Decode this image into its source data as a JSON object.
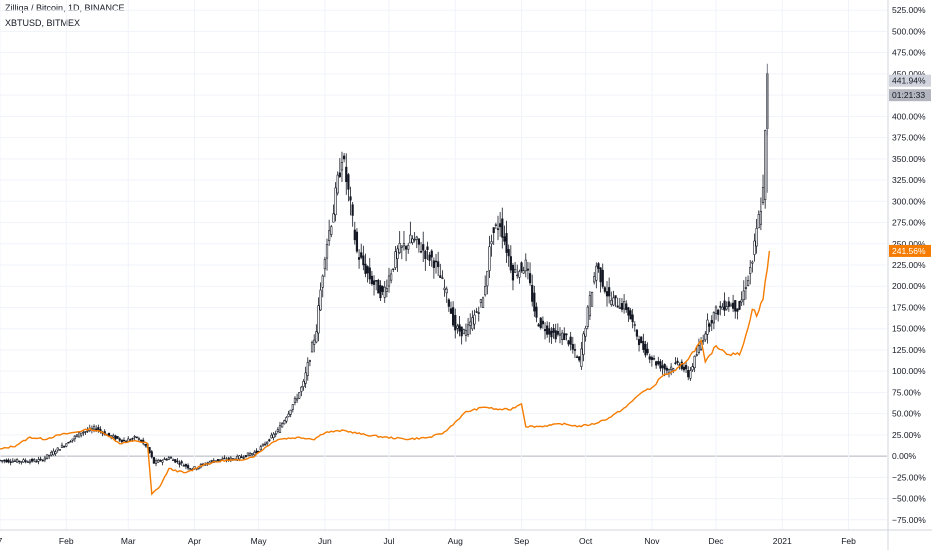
{
  "legend": {
    "main": "Zilliqa / Bitcoin, 1D, BINANCE",
    "compare": "XBTUSD, BITMEX"
  },
  "badges": {
    "main_value": "441.94%",
    "timer": "01:21:33",
    "compare_value": "241.56%"
  },
  "colors": {
    "background": "#ffffff",
    "grid": "#f0f3fa",
    "candle": "#131722",
    "compare_line": "#f57c00",
    "badge_main": "#d1d4dc",
    "badge_timer": "#b2b5be",
    "badge_compare": "#f57c00",
    "axis_text": "#131722",
    "zero_line": "#b2b5be"
  },
  "chart_data": {
    "type": "line",
    "ylim": [
      -87,
      537
    ],
    "yticks": [
      {
        "value": 525,
        "label": "525.00%"
      },
      {
        "value": 500,
        "label": "500.00%"
      },
      {
        "value": 475,
        "label": "475.00%"
      },
      {
        "value": 450,
        "label": "450.00%"
      },
      {
        "value": 425,
        "label": "425.00%"
      },
      {
        "value": 400,
        "label": "400.00%"
      },
      {
        "value": 375,
        "label": "375.00%"
      },
      {
        "value": 350,
        "label": "350.00%"
      },
      {
        "value": 325,
        "label": "325.00%"
      },
      {
        "value": 300,
        "label": "300.00%"
      },
      {
        "value": 275,
        "label": "275.00%"
      },
      {
        "value": 250,
        "label": "250.00%"
      },
      {
        "value": 225,
        "label": "225.00%"
      },
      {
        "value": 200,
        "label": "200.00%"
      },
      {
        "value": 175,
        "label": "175.00%"
      },
      {
        "value": 150,
        "label": "150.00%"
      },
      {
        "value": 125,
        "label": "125.00%"
      },
      {
        "value": 100,
        "label": "100.00%"
      },
      {
        "value": 75,
        "label": "75.00%"
      },
      {
        "value": 50,
        "label": "50.00%"
      },
      {
        "value": 25,
        "label": "25.00%"
      },
      {
        "value": 0,
        "label": "0.00%"
      },
      {
        "value": -25,
        "label": "−25.00%"
      },
      {
        "value": -50,
        "label": "−50.00%"
      },
      {
        "value": -75,
        "label": "−75.00%"
      }
    ],
    "xticks": [
      {
        "date": "2020-01-01",
        "label": "7"
      },
      {
        "date": "2020-02-01",
        "label": "Feb"
      },
      {
        "date": "2020-03-01",
        "label": "Mar"
      },
      {
        "date": "2020-04-01",
        "label": "Apr"
      },
      {
        "date": "2020-05-01",
        "label": "May"
      },
      {
        "date": "2020-06-01",
        "label": "Jun"
      },
      {
        "date": "2020-07-01",
        "label": "Jul"
      },
      {
        "date": "2020-08-01",
        "label": "Aug"
      },
      {
        "date": "2020-09-01",
        "label": "Sep"
      },
      {
        "date": "2020-10-01",
        "label": "Oct"
      },
      {
        "date": "2020-11-01",
        "label": "Nov"
      },
      {
        "date": "2020-12-01",
        "label": "Dec"
      },
      {
        "date": "2021-01-01",
        "label": "2021"
      },
      {
        "date": "2021-02-01",
        "label": "Feb"
      }
    ],
    "xlim": [
      "2020-01-01",
      "2021-02-19"
    ],
    "series": [
      {
        "name": "Zilliqa / Bitcoin, 1D, BINANCE",
        "style": "candles",
        "points": [
          [
            "2020-01-01",
            -5
          ],
          [
            "2020-01-10",
            -6
          ],
          [
            "2020-01-20",
            -5
          ],
          [
            "2020-01-25",
            3
          ],
          [
            "2020-02-01",
            15
          ],
          [
            "2020-02-08",
            28
          ],
          [
            "2020-02-15",
            33
          ],
          [
            "2020-02-20",
            25
          ],
          [
            "2020-02-28",
            18
          ],
          [
            "2020-03-05",
            22
          ],
          [
            "2020-03-10",
            10
          ],
          [
            "2020-03-13",
            -8
          ],
          [
            "2020-03-20",
            -2
          ],
          [
            "2020-03-31",
            -15
          ],
          [
            "2020-04-10",
            -5
          ],
          [
            "2020-04-20",
            -3
          ],
          [
            "2020-04-30",
            5
          ],
          [
            "2020-05-10",
            30
          ],
          [
            "2020-05-18",
            65
          ],
          [
            "2020-05-22",
            85
          ],
          [
            "2020-05-28",
            150
          ],
          [
            "2020-06-01",
            240
          ],
          [
            "2020-06-05",
            290
          ],
          [
            "2020-06-09",
            355
          ],
          [
            "2020-06-12",
            310
          ],
          [
            "2020-06-16",
            240
          ],
          [
            "2020-06-22",
            210
          ],
          [
            "2020-06-28",
            190
          ],
          [
            "2020-07-05",
            240
          ],
          [
            "2020-07-12",
            255
          ],
          [
            "2020-07-22",
            230
          ],
          [
            "2020-07-28",
            190
          ],
          [
            "2020-08-01",
            150
          ],
          [
            "2020-08-06",
            145
          ],
          [
            "2020-08-14",
            185
          ],
          [
            "2020-08-18",
            260
          ],
          [
            "2020-08-22",
            275
          ],
          [
            "2020-08-28",
            215
          ],
          [
            "2020-09-03",
            225
          ],
          [
            "2020-09-08",
            160
          ],
          [
            "2020-09-15",
            145
          ],
          [
            "2020-09-22",
            140
          ],
          [
            "2020-09-28",
            110
          ],
          [
            "2020-10-02",
            170
          ],
          [
            "2020-10-06",
            225
          ],
          [
            "2020-10-12",
            185
          ],
          [
            "2020-10-20",
            175
          ],
          [
            "2020-10-27",
            130
          ],
          [
            "2020-11-03",
            110
          ],
          [
            "2020-11-08",
            102
          ],
          [
            "2020-11-14",
            110
          ],
          [
            "2020-11-18",
            95
          ],
          [
            "2020-11-22",
            120
          ],
          [
            "2020-11-27",
            155
          ],
          [
            "2020-12-01",
            170
          ],
          [
            "2020-12-06",
            180
          ],
          [
            "2020-12-12",
            175
          ],
          [
            "2020-12-18",
            230
          ],
          [
            "2020-12-21",
            280
          ],
          [
            "2020-12-23",
            310
          ],
          [
            "2020-12-25",
            442
          ]
        ]
      },
      {
        "name": "XBTUSD, BITMEX",
        "style": "line",
        "points": [
          [
            "2020-01-01",
            8
          ],
          [
            "2020-01-08",
            12
          ],
          [
            "2020-01-15",
            22
          ],
          [
            "2020-01-22",
            20
          ],
          [
            "2020-01-29",
            25
          ],
          [
            "2020-02-05",
            28
          ],
          [
            "2020-02-12",
            32
          ],
          [
            "2020-02-19",
            27
          ],
          [
            "2020-02-26",
            15
          ],
          [
            "2020-03-05",
            18
          ],
          [
            "2020-03-10",
            15
          ],
          [
            "2020-03-12",
            -45
          ],
          [
            "2020-03-16",
            -35
          ],
          [
            "2020-03-20",
            -15
          ],
          [
            "2020-03-28",
            -20
          ],
          [
            "2020-04-05",
            -10
          ],
          [
            "2020-04-15",
            -5
          ],
          [
            "2020-04-22",
            -5
          ],
          [
            "2020-04-29",
            0
          ],
          [
            "2020-05-05",
            12
          ],
          [
            "2020-05-10",
            20
          ],
          [
            "2020-05-20",
            22
          ],
          [
            "2020-05-27",
            20
          ],
          [
            "2020-06-01",
            28
          ],
          [
            "2020-06-10",
            30
          ],
          [
            "2020-06-20",
            25
          ],
          [
            "2020-06-30",
            22
          ],
          [
            "2020-07-10",
            20
          ],
          [
            "2020-07-20",
            22
          ],
          [
            "2020-07-27",
            28
          ],
          [
            "2020-08-01",
            40
          ],
          [
            "2020-08-06",
            52
          ],
          [
            "2020-08-15",
            58
          ],
          [
            "2020-08-20",
            55
          ],
          [
            "2020-08-27",
            55
          ],
          [
            "2020-09-01",
            62
          ],
          [
            "2020-09-03",
            35
          ],
          [
            "2020-09-10",
            35
          ],
          [
            "2020-09-20",
            38
          ],
          [
            "2020-09-28",
            35
          ],
          [
            "2020-10-05",
            38
          ],
          [
            "2020-10-12",
            45
          ],
          [
            "2020-10-20",
            58
          ],
          [
            "2020-10-27",
            75
          ],
          [
            "2020-11-01",
            80
          ],
          [
            "2020-11-06",
            95
          ],
          [
            "2020-11-12",
            100
          ],
          [
            "2020-11-18",
            115
          ],
          [
            "2020-11-24",
            135
          ],
          [
            "2020-11-26",
            110
          ],
          [
            "2020-12-01",
            130
          ],
          [
            "2020-12-07",
            120
          ],
          [
            "2020-12-12",
            120
          ],
          [
            "2020-12-16",
            150
          ],
          [
            "2020-12-18",
            175
          ],
          [
            "2020-12-20",
            165
          ],
          [
            "2020-12-23",
            185
          ],
          [
            "2020-12-26",
            242
          ]
        ]
      }
    ]
  }
}
